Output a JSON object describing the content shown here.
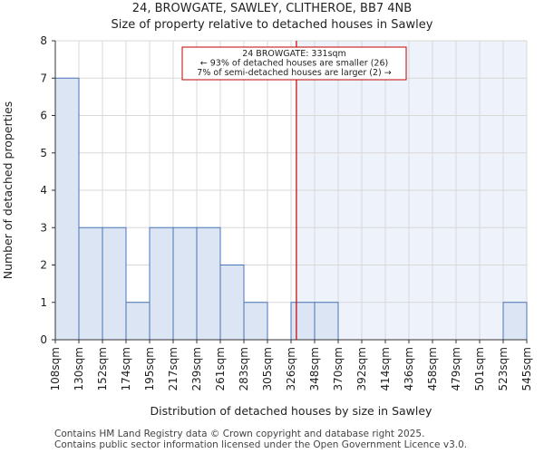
{
  "title_line1": "24, BROWGATE, SAWLEY, CLITHEROE, BB7 4NB",
  "title_line2": "Size of property relative to detached houses in Sawley",
  "footer_line1": "Contains HM Land Registry data © Crown copyright and database right 2025.",
  "footer_line2": "Contains public sector information licensed under the Open Government Licence v3.0.",
  "colors": {
    "bar_fill": "#dbe5f4",
    "bar_stroke": "#4a74b8",
    "highlight_bg": "#eef2fa",
    "marker": "#c00000",
    "grid": "#d8d8d8"
  },
  "chart_data": {
    "type": "bar",
    "xlabel": "Distribution of detached houses by size in Sawley",
    "ylabel": "Number of detached properties",
    "ylim": [
      0,
      8
    ],
    "yticks": [
      0,
      1,
      2,
      3,
      4,
      5,
      6,
      7,
      8
    ],
    "grid": true,
    "bin_edges": [
      "108sqm",
      "130sqm",
      "152sqm",
      "174sqm",
      "195sqm",
      "217sqm",
      "239sqm",
      "261sqm",
      "283sqm",
      "305sqm",
      "326sqm",
      "348sqm",
      "370sqm",
      "392sqm",
      "414sqm",
      "436sqm",
      "458sqm",
      "479sqm",
      "501sqm",
      "523sqm",
      "545sqm"
    ],
    "values": [
      7,
      3,
      3,
      1,
      3,
      3,
      3,
      2,
      1,
      0,
      1,
      1,
      0,
      0,
      0,
      0,
      0,
      0,
      0,
      1
    ],
    "subject_value_sqm": 331,
    "annotation": {
      "line1": "24 BROWGATE: 331sqm",
      "line2": "← 93% of detached houses are smaller (26)",
      "line3": "7% of semi-detached houses are larger (2) →"
    }
  }
}
